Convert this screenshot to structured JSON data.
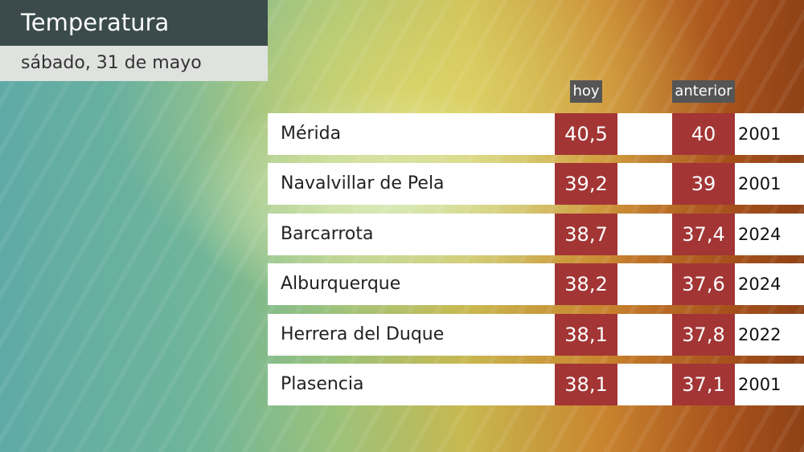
{
  "header": {
    "title": "Temperatura",
    "subtitle": "sábado, 31 de mayo"
  },
  "table": {
    "columns": [
      "hoy",
      "anterior"
    ],
    "rows": [
      [
        "Mérida",
        "40,5",
        "40",
        "2001"
      ],
      [
        "Navalvillar de Pela",
        "39,2",
        "39",
        "2001"
      ],
      [
        "Barcarrota",
        "38,7",
        "37,4",
        "2024"
      ],
      [
        "Alburquerque",
        "38,2",
        "37,6",
        "2024"
      ],
      [
        "Herrera del Duque",
        "38,1",
        "37,8",
        "2022"
      ],
      [
        "Plasencia",
        "38,1",
        "37,1",
        "2001"
      ]
    ]
  }
}
